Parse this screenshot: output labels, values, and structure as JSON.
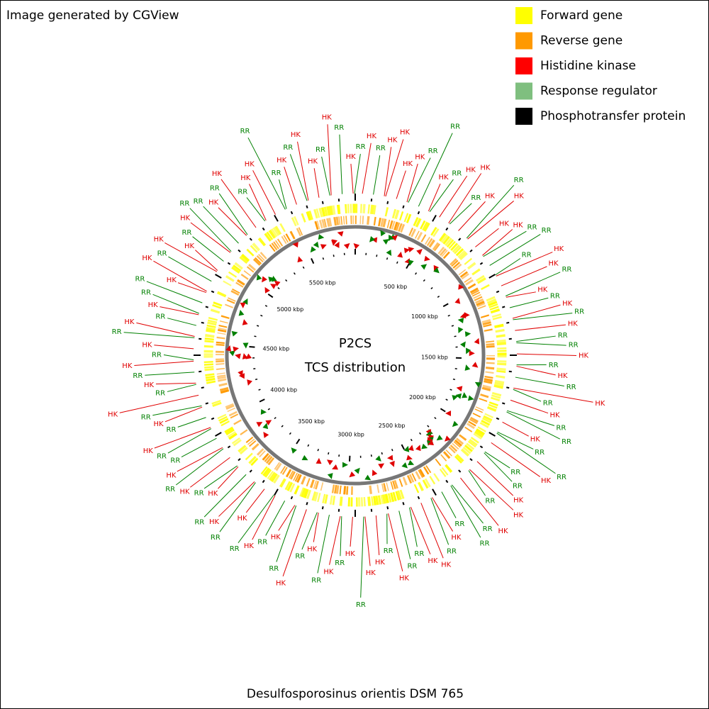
{
  "header": {
    "credit": "Image generated by CGView"
  },
  "legend": [
    {
      "label": "Forward gene",
      "color": "#ffff00"
    },
    {
      "label": "Reverse gene",
      "color": "#ff9900"
    },
    {
      "label": "Histidine kinase",
      "color": "#ff0000"
    },
    {
      "label": "Response regulator",
      "color": "#7fbf7f"
    },
    {
      "label": "Phosphotransfer protein",
      "color": "#000000"
    }
  ],
  "center": {
    "title": "P2CS",
    "subtitle": "TCS distribution"
  },
  "footer": {
    "organism": "Desulfosporosinus orientis DSM 765"
  },
  "ring_labels": [
    "500 kbp",
    "1000 kbp",
    "1500 kbp",
    "2000 kbp",
    "2500 kbp",
    "3000 kbp",
    "3500 kbp",
    "4000 kbp",
    "4500 kbp",
    "5000 kbp",
    "5500 kbp"
  ],
  "features": [
    {
      "label": "HK",
      "color": "#e00000"
    },
    {
      "label": "RR",
      "color": "#008000"
    },
    {
      "label": "HK",
      "color": "#e00000"
    },
    {
      "label": "HK",
      "color": "#e00000"
    },
    {
      "label": "HK",
      "color": "#e00000"
    },
    {
      "label": "HK",
      "color": "#e00000"
    },
    {
      "label": "RR",
      "color": "#008000"
    },
    {
      "label": "RR",
      "color": "#008000"
    },
    {
      "label": "HK",
      "color": "#e00000"
    },
    {
      "label": "RR",
      "color": "#008000"
    },
    {
      "label": "HK",
      "color": "#e00000"
    },
    {
      "label": "HK",
      "color": "#e00000"
    },
    {
      "label": "RR",
      "color": "#008000"
    },
    {
      "label": "HK",
      "color": "#e00000"
    },
    {
      "label": "RR",
      "color": "#008000"
    },
    {
      "label": "HK",
      "color": "#e00000"
    },
    {
      "label": "HK",
      "color": "#e00000"
    },
    {
      "label": "HK",
      "color": "#e00000"
    },
    {
      "label": "RR",
      "color": "#008000"
    },
    {
      "label": "RR",
      "color": "#008000"
    },
    {
      "label": "RR",
      "color": "#008000"
    },
    {
      "label": "HK",
      "color": "#e00000"
    },
    {
      "label": "HK",
      "color": "#e00000"
    },
    {
      "label": "RR",
      "color": "#008000"
    },
    {
      "label": "HK",
      "color": "#e00000"
    },
    {
      "label": "RR",
      "color": "#008000"
    },
    {
      "label": "HK",
      "color": "#e00000"
    },
    {
      "label": "RR",
      "color": "#008000"
    },
    {
      "label": "HK",
      "color": "#e00000"
    },
    {
      "label": "RR",
      "color": "#008000"
    },
    {
      "label": "RR",
      "color": "#008000"
    },
    {
      "label": "HK",
      "color": "#e00000"
    },
    {
      "label": "RR",
      "color": "#008000"
    },
    {
      "label": "HK",
      "color": "#e00000"
    },
    {
      "label": "RR",
      "color": "#008000"
    },
    {
      "label": "HK",
      "color": "#e00000"
    },
    {
      "label": "RR",
      "color": "#008000"
    },
    {
      "label": "HK",
      "color": "#e00000"
    },
    {
      "label": "RR",
      "color": "#008000"
    },
    {
      "label": "RR",
      "color": "#008000"
    },
    {
      "label": "HK",
      "color": "#e00000"
    },
    {
      "label": "RR",
      "color": "#008000"
    },
    {
      "label": "RR",
      "color": "#008000"
    },
    {
      "label": "HK",
      "color": "#e00000"
    },
    {
      "label": "RR",
      "color": "#008000"
    },
    {
      "label": "RR",
      "color": "#008000"
    },
    {
      "label": "HK",
      "color": "#e00000"
    },
    {
      "label": "HK",
      "color": "#e00000"
    },
    {
      "label": "RR",
      "color": "#008000"
    },
    {
      "label": "HK",
      "color": "#e00000"
    },
    {
      "label": "RR",
      "color": "#008000"
    },
    {
      "label": "RR",
      "color": "#008000"
    },
    {
      "label": "RR",
      "color": "#008000"
    },
    {
      "label": "HK",
      "color": "#e00000"
    },
    {
      "label": "RR",
      "color": "#008000"
    },
    {
      "label": "HK",
      "color": "#e00000"
    },
    {
      "label": "HK",
      "color": "#e00000"
    },
    {
      "label": "RR",
      "color": "#008000"
    },
    {
      "label": "RR",
      "color": "#008000"
    },
    {
      "label": "HK",
      "color": "#e00000"
    },
    {
      "label": "RR",
      "color": "#008000"
    },
    {
      "label": "HK",
      "color": "#e00000"
    },
    {
      "label": "HK",
      "color": "#e00000"
    },
    {
      "label": "RR",
      "color": "#008000"
    },
    {
      "label": "HK",
      "color": "#e00000"
    },
    {
      "label": "RR",
      "color": "#008000"
    },
    {
      "label": "HK",
      "color": "#e00000"
    },
    {
      "label": "RR",
      "color": "#008000"
    },
    {
      "label": "HK",
      "color": "#e00000"
    },
    {
      "label": "RR",
      "color": "#008000"
    },
    {
      "label": "HK",
      "color": "#e00000"
    },
    {
      "label": "RR",
      "color": "#008000"
    },
    {
      "label": "HK",
      "color": "#e00000"
    },
    {
      "label": "RR",
      "color": "#008000"
    },
    {
      "label": "HK",
      "color": "#e00000"
    },
    {
      "label": "RR",
      "color": "#008000"
    },
    {
      "label": "HK",
      "color": "#e00000"
    },
    {
      "label": "RR",
      "color": "#008000"
    },
    {
      "label": "HK",
      "color": "#e00000"
    },
    {
      "label": "RR",
      "color": "#008000"
    },
    {
      "label": "HK",
      "color": "#e00000"
    },
    {
      "label": "RR",
      "color": "#008000"
    },
    {
      "label": "HK",
      "color": "#e00000"
    },
    {
      "label": "RR",
      "color": "#008000"
    },
    {
      "label": "HK",
      "color": "#e00000"
    },
    {
      "label": "RR",
      "color": "#008000"
    },
    {
      "label": "RR",
      "color": "#008000"
    },
    {
      "label": "HK",
      "color": "#e00000"
    },
    {
      "label": "RR",
      "color": "#008000"
    },
    {
      "label": "HK",
      "color": "#e00000"
    },
    {
      "label": "RR",
      "color": "#008000"
    },
    {
      "label": "HK",
      "color": "#e00000"
    },
    {
      "label": "RR",
      "color": "#008000"
    },
    {
      "label": "HK",
      "color": "#e00000"
    },
    {
      "label": "RR",
      "color": "#008000"
    },
    {
      "label": "HK",
      "color": "#e00000"
    },
    {
      "label": "RR",
      "color": "#008000"
    },
    {
      "label": "HK",
      "color": "#e00000"
    },
    {
      "label": "RR",
      "color": "#008000"
    },
    {
      "label": "HK",
      "color": "#e00000"
    },
    {
      "label": "RR",
      "color": "#008000"
    },
    {
      "label": "HK",
      "color": "#e00000"
    },
    {
      "label": "RR",
      "color": "#008000"
    },
    {
      "label": "RR",
      "color": "#008000"
    },
    {
      "label": "HK",
      "color": "#e00000"
    },
    {
      "label": "HK",
      "color": "#e00000"
    },
    {
      "label": "RR",
      "color": "#008000"
    },
    {
      "label": "HK",
      "color": "#e00000"
    },
    {
      "label": "HK",
      "color": "#e00000"
    },
    {
      "label": "RR",
      "color": "#008000"
    },
    {
      "label": "HK",
      "color": "#e00000"
    },
    {
      "label": "RR",
      "color": "#008000"
    },
    {
      "label": "RR",
      "color": "#008000"
    },
    {
      "label": "HK",
      "color": "#e00000"
    },
    {
      "label": "RR",
      "color": "#008000"
    },
    {
      "label": "HK",
      "color": "#e00000"
    },
    {
      "label": "RR",
      "color": "#008000"
    },
    {
      "label": "HK",
      "color": "#e00000"
    },
    {
      "label": "HK",
      "color": "#e00000"
    },
    {
      "label": "RR",
      "color": "#008000"
    },
    {
      "label": "RR",
      "color": "#008000"
    },
    {
      "label": "HK",
      "color": "#e00000"
    },
    {
      "label": "RR",
      "color": "#008000"
    },
    {
      "label": "HK",
      "color": "#e00000"
    },
    {
      "label": "HK",
      "color": "#e00000"
    },
    {
      "label": "RR",
      "color": "#008000"
    },
    {
      "label": "HK",
      "color": "#e00000"
    },
    {
      "label": "RR",
      "color": "#008000"
    },
    {
      "label": "HK",
      "color": "#e00000"
    },
    {
      "label": "RR",
      "color": "#008000"
    }
  ]
}
